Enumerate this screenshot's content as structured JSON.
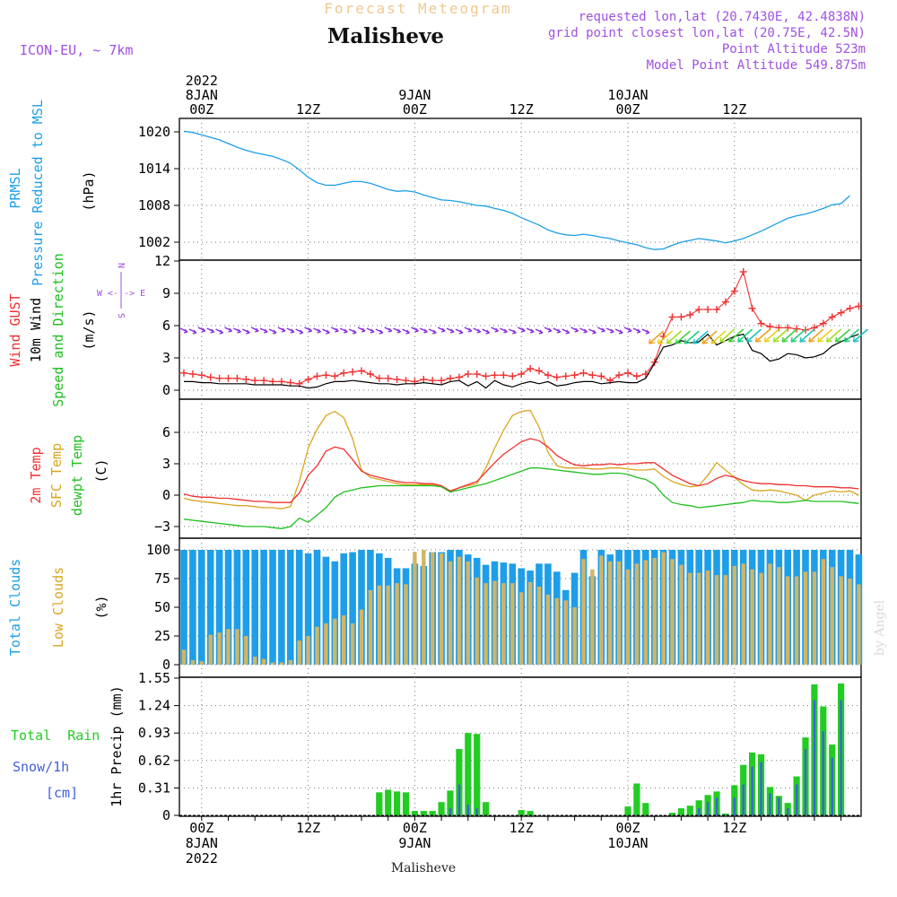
{
  "header": {
    "supertitle": "Forecast Meteogram",
    "title": "Malisheve",
    "model": "ICON-EU, ~ 7km",
    "requested": "requested lon,lat (20.7430E, 42.4838N)",
    "gridpoint": "grid point closest lon,lat (20.75E, 42.5N)",
    "point_altitude": "Point Altitude 523m",
    "model_altitude": "Model Point Altitude 549.875m",
    "footer": "Malisheve",
    "credit": "by Angel"
  },
  "colors": {
    "pressure": "#1b9ee8",
    "gust": "#f03030",
    "wind": "#000000",
    "dir_purple": "#8a2be2",
    "t2m": "#f03030",
    "sfc": "#daa520",
    "dew": "#20c020",
    "total_clouds": "#1e9ee8",
    "low_clouds": "#d2b464",
    "rain": "#22cc22",
    "snow": "#4060e0",
    "labels_purple": "#a050e0"
  },
  "time_axis": {
    "top": [
      {
        "i": 2,
        "lines": [
          "2022",
          "8JAN",
          "00Z"
        ]
      },
      {
        "i": 14,
        "lines": [
          "12Z"
        ]
      },
      {
        "i": 26,
        "lines": [
          "9JAN",
          "00Z"
        ]
      },
      {
        "i": 38,
        "lines": [
          "12Z"
        ]
      },
      {
        "i": 50,
        "lines": [
          "10JAN",
          "00Z"
        ]
      },
      {
        "i": 62,
        "lines": [
          "12Z"
        ]
      }
    ],
    "bottom": [
      {
        "i": 2,
        "lines": [
          "00Z",
          "8JAN",
          "2022"
        ]
      },
      {
        "i": 14,
        "lines": [
          "12Z"
        ]
      },
      {
        "i": 26,
        "lines": [
          "00Z",
          "9JAN"
        ]
      },
      {
        "i": 38,
        "lines": [
          "12Z"
        ]
      },
      {
        "i": 50,
        "lines": [
          "00Z",
          "10JAN"
        ]
      },
      {
        "i": 62,
        "lines": [
          "12Z"
        ]
      }
    ]
  },
  "panel_labels": {
    "pressure": [
      "PRMSL",
      "Pressure Reduced to MSL",
      "(hPa)"
    ],
    "wind": [
      "Wind GUST",
      "10m Wind",
      "Speed and Direction",
      "(m/s)"
    ],
    "compass": [
      "N",
      "S",
      "W <-|-> E"
    ],
    "temp": [
      "2m Temp",
      "SFC Temp",
      "dewpt Temp",
      "(C)"
    ],
    "clouds": [
      "Total Clouds",
      "Low Clouds",
      "(%)"
    ],
    "precip_side": [
      "Total  Rain",
      "Snow/1h",
      "[cm]"
    ],
    "precip_axis": "1hr Precip (mm)"
  },
  "chart_data": [
    {
      "type": "line",
      "title": "PRMSL Pressure Reduced to MSL",
      "ylabel": "(hPa)",
      "x_unit": "hours from 2022-01-07 22Z",
      "yticks": [
        1002,
        1008,
        1014,
        1020
      ],
      "ylim": [
        1000,
        1022
      ],
      "series": [
        {
          "name": "PRMSL",
          "values": [
            1020.1,
            1019.9,
            1019.5,
            1019.1,
            1018.7,
            1018.1,
            1017.5,
            1017.0,
            1016.6,
            1016.3,
            1016.0,
            1015.5,
            1014.9,
            1013.8,
            1012.6,
            1011.7,
            1011.3,
            1011.3,
            1011.6,
            1011.9,
            1011.9,
            1011.6,
            1011.1,
            1010.6,
            1010.3,
            1010.4,
            1010.2,
            1009.7,
            1009.3,
            1008.9,
            1008.8,
            1008.6,
            1008.3,
            1008.0,
            1007.9,
            1007.5,
            1007.2,
            1006.7,
            1006.0,
            1005.4,
            1004.8,
            1004.0,
            1003.5,
            1003.2,
            1003.1,
            1003.3,
            1003.1,
            1002.8,
            1002.6,
            1002.2,
            1001.9,
            1001.6,
            1001.1,
            1000.8,
            1000.9,
            1001.5,
            1002.0,
            1002.3,
            1002.6,
            1002.4,
            1002.2,
            1001.9,
            1002.2,
            1002.6,
            1003.2,
            1003.8,
            1004.5,
            1005.2,
            1005.9,
            1006.3,
            1006.6,
            1007.0,
            1007.5,
            1008.1,
            1008.3,
            1009.6
          ]
        }
      ]
    },
    {
      "type": "line",
      "title": "Wind GUST / 10m Wind Speed and Direction",
      "ylabel": "(m/s)",
      "yticks": [
        0,
        3,
        6,
        9,
        12
      ],
      "ylim": [
        -1,
        12
      ],
      "series": [
        {
          "name": "Wind GUST",
          "values": [
            1.6,
            1.5,
            1.4,
            1.2,
            1.1,
            1.1,
            1.1,
            1.0,
            0.9,
            0.9,
            0.8,
            0.8,
            0.7,
            0.6,
            1.0,
            1.3,
            1.4,
            1.3,
            1.6,
            1.7,
            1.8,
            1.5,
            1.1,
            1.1,
            1.0,
            0.9,
            0.8,
            1.0,
            0.9,
            0.9,
            1.1,
            1.2,
            1.5,
            1.5,
            1.3,
            1.4,
            1.4,
            1.3,
            1.5,
            2.0,
            1.8,
            1.4,
            1.2,
            1.3,
            1.4,
            1.6,
            1.4,
            1.3,
            0.9,
            1.4,
            1.6,
            1.3,
            1.5,
            2.6,
            5.0,
            6.8,
            6.8,
            7.0,
            7.5,
            7.5,
            7.5,
            8.2,
            9.2,
            11.0,
            7.6,
            6.2,
            5.9,
            5.8,
            5.8,
            5.7,
            5.6,
            5.8,
            6.2,
            6.8,
            7.2,
            7.6,
            7.8
          ]
        },
        {
          "name": "10m Wind",
          "values": [
            0.8,
            0.8,
            0.7,
            0.7,
            0.6,
            0.6,
            0.6,
            0.6,
            0.5,
            0.5,
            0.5,
            0.5,
            0.4,
            0.4,
            0.2,
            0.3,
            0.6,
            0.8,
            0.8,
            0.9,
            0.8,
            0.7,
            0.6,
            0.6,
            0.5,
            0.6,
            0.6,
            0.7,
            0.6,
            0.5,
            0.8,
            0.9,
            0.4,
            0.8,
            0.2,
            0.9,
            0.5,
            0.3,
            0.6,
            0.8,
            0.6,
            0.8,
            0.4,
            0.5,
            0.7,
            0.8,
            0.8,
            0.6,
            0.7,
            0.8,
            0.7,
            0.7,
            1.1,
            2.5,
            4.0,
            4.2,
            4.6,
            4.4,
            4.5,
            5.2,
            4.2,
            4.6,
            5.0,
            5.2,
            3.7,
            3.4,
            2.7,
            2.9,
            3.4,
            3.3,
            3.0,
            3.1,
            3.4,
            4.1,
            4.5,
            4.9,
            5.2
          ]
        }
      ]
    },
    {
      "type": "line",
      "title": "2m Temp / SFC Temp / dewpt Temp",
      "ylabel": "(C)",
      "yticks": [
        -3,
        0,
        3,
        6
      ],
      "ylim": [
        -4,
        9
      ],
      "series": [
        {
          "name": "2m Temp",
          "values": [
            0.1,
            -0.1,
            -0.2,
            -0.2,
            -0.3,
            -0.3,
            -0.4,
            -0.5,
            -0.6,
            -0.6,
            -0.7,
            -0.7,
            -0.7,
            0.2,
            1.9,
            2.8,
            4.2,
            4.6,
            4.4,
            3.4,
            2.3,
            1.9,
            1.7,
            1.5,
            1.3,
            1.2,
            1.2,
            1.1,
            1.1,
            0.9,
            0.4,
            0.7,
            1.0,
            1.3,
            2.2,
            3.1,
            3.9,
            4.5,
            5.1,
            5.4,
            5.2,
            4.6,
            3.8,
            3.3,
            2.9,
            2.8,
            2.9,
            2.9,
            3.0,
            2.9,
            3.0,
            3.0,
            3.1,
            3.1,
            2.5,
            1.9,
            1.5,
            1.1,
            0.9,
            1.1,
            1.6,
            1.9,
            1.7,
            1.4,
            1.2,
            1.1,
            1.1,
            1.0,
            1.0,
            0.9,
            0.9,
            0.8,
            0.8,
            0.8,
            0.7,
            0.7,
            0.6
          ]
        },
        {
          "name": "SFC Temp",
          "values": [
            -0.3,
            -0.5,
            -0.6,
            -0.7,
            -0.8,
            -0.9,
            -1.0,
            -1.0,
            -1.1,
            -1.2,
            -1.2,
            -1.3,
            -1.1,
            1.3,
            4.5,
            6.3,
            7.6,
            8.0,
            7.4,
            5.4,
            2.4,
            1.7,
            1.5,
            1.3,
            1.1,
            1.0,
            1.0,
            1.0,
            1.0,
            0.9,
            0.3,
            0.7,
            0.9,
            1.1,
            2.6,
            4.5,
            6.2,
            7.6,
            8.0,
            8.1,
            6.5,
            4.1,
            2.8,
            2.6,
            2.6,
            2.6,
            2.5,
            2.5,
            2.6,
            2.6,
            2.5,
            2.4,
            2.4,
            2.5,
            1.8,
            1.3,
            1.0,
            0.8,
            0.9,
            1.9,
            3.1,
            2.4,
            1.7,
            1.0,
            0.5,
            0.4,
            0.5,
            0.4,
            0.2,
            0.0,
            -0.5,
            0.0,
            0.2,
            0.4,
            0.3,
            0.4,
            0.0
          ]
        },
        {
          "name": "dewpt Temp",
          "values": [
            -2.3,
            -2.4,
            -2.5,
            -2.6,
            -2.7,
            -2.8,
            -2.9,
            -3.0,
            -3.0,
            -3.0,
            -3.1,
            -3.2,
            -3.0,
            -2.2,
            -2.6,
            -1.9,
            -1.2,
            -0.2,
            0.3,
            0.5,
            0.7,
            0.8,
            0.9,
            0.9,
            0.9,
            0.9,
            0.9,
            0.9,
            0.9,
            0.8,
            0.3,
            0.5,
            0.7,
            0.9,
            1.1,
            1.4,
            1.7,
            2.0,
            2.3,
            2.6,
            2.6,
            2.5,
            2.4,
            2.3,
            2.2,
            2.1,
            2.0,
            2.0,
            2.1,
            2.1,
            2.0,
            1.7,
            1.5,
            1.0,
            0.0,
            -0.7,
            -0.9,
            -1.0,
            -1.2,
            -1.1,
            -1.0,
            -0.9,
            -0.8,
            -0.7,
            -0.5,
            -0.6,
            -0.6,
            -0.7,
            -0.7,
            -0.6,
            -0.5,
            -0.6,
            -0.6,
            -0.6,
            -0.6,
            -0.7,
            -0.8
          ]
        }
      ]
    },
    {
      "type": "bar",
      "title": "Total Clouds / Low Clouds",
      "ylabel": "(%)",
      "yticks": [
        0,
        25,
        50,
        75,
        100
      ],
      "ylim": [
        0,
        100
      ],
      "series": [
        {
          "name": "Total Clouds",
          "values": [
            100,
            100,
            100,
            100,
            100,
            100,
            100,
            100,
            100,
            100,
            100,
            100,
            100,
            100,
            97,
            100,
            94,
            90,
            97,
            98,
            100,
            100,
            97,
            93,
            84,
            84,
            88,
            86,
            98,
            98,
            100,
            100,
            96,
            93,
            87,
            90,
            89,
            88,
            84,
            82,
            88,
            88,
            81,
            65,
            80,
            100,
            77,
            100,
            96,
            100,
            100,
            100,
            100,
            100,
            100,
            100,
            100,
            100,
            100,
            100,
            100,
            100,
            100,
            100,
            100,
            100,
            100,
            100,
            100,
            100,
            100,
            100,
            100,
            100,
            100,
            100,
            96
          ]
        },
        {
          "name": "Low Clouds",
          "values": [
            13,
            4,
            3,
            26,
            28,
            31,
            31,
            25,
            7,
            5,
            2,
            2,
            4,
            21,
            25,
            33,
            36,
            40,
            43,
            36,
            48,
            65,
            69,
            69,
            71,
            70,
            98,
            100,
            98,
            97,
            90,
            94,
            90,
            76,
            71,
            73,
            71,
            71,
            63,
            72,
            68,
            61,
            58,
            56,
            50,
            92,
            83,
            95,
            90,
            90,
            83,
            88,
            91,
            93,
            98,
            92,
            87,
            80,
            80,
            82,
            78,
            78,
            86,
            88,
            83,
            80,
            88,
            85,
            77,
            77,
            81,
            81,
            92,
            85,
            77,
            75,
            70
          ]
        }
      ]
    },
    {
      "type": "bar",
      "title": "1hr Precip (mm)",
      "ylabel": "1hr Precip (mm)",
      "yticks": [
        0,
        0.31,
        0.62,
        0.93,
        1.24,
        1.55
      ],
      "ylim": [
        0,
        1.55
      ],
      "series": [
        {
          "name": "Total Rain",
          "values": [
            0,
            0,
            0,
            0,
            0,
            0,
            0,
            0,
            0,
            0,
            0,
            0,
            0,
            0,
            0,
            0,
            0,
            0,
            0,
            0,
            0,
            0,
            0.26,
            0.29,
            0.27,
            0.26,
            0.05,
            0.05,
            0.05,
            0.15,
            0.28,
            0.75,
            0.93,
            0.92,
            0.15,
            0,
            0,
            0,
            0.06,
            0.05,
            0,
            0,
            0,
            0,
            0,
            0,
            0,
            0,
            0,
            0,
            0.1,
            0.36,
            0.14,
            0,
            0,
            0.03,
            0.08,
            0.11,
            0.17,
            0.23,
            0.27,
            0.02,
            0.34,
            0.57,
            0.71,
            0.69,
            0.32,
            0.22,
            0.14,
            0.44,
            0.88,
            1.48,
            1.23,
            0.8,
            1.49
          ]
        },
        {
          "name": "Snow/1h",
          "values": [
            0,
            0,
            0,
            0,
            0,
            0,
            0,
            0,
            0,
            0,
            0,
            0,
            0,
            0,
            0,
            0,
            0,
            0,
            0,
            0,
            0,
            0,
            0,
            0,
            0,
            0,
            0,
            0,
            0,
            0,
            0.08,
            0.35,
            0.12,
            0.08,
            0,
            0,
            0,
            0,
            0,
            0,
            0,
            0,
            0,
            0,
            0,
            0,
            0,
            0,
            0,
            0,
            0,
            0,
            0,
            0,
            0,
            0,
            0,
            0,
            0.08,
            0.15,
            0.2,
            0,
            0.2,
            0.35,
            0.55,
            0.6,
            0.25,
            0.2,
            0.08,
            0.35,
            0.75,
            1.3,
            0.95,
            0.65,
            1.3
          ]
        }
      ]
    }
  ]
}
